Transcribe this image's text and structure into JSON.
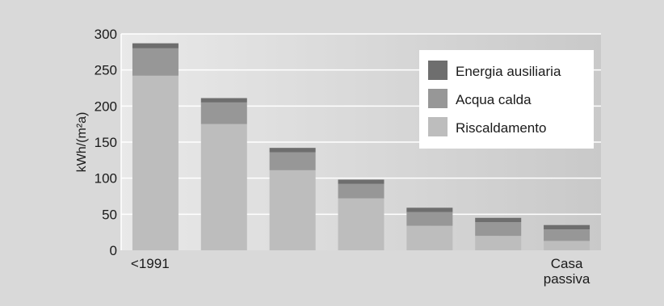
{
  "chart_data": {
    "type": "bar",
    "stacked": true,
    "title": "",
    "xlabel": "",
    "ylabel": "kWh/(m²a)",
    "ylim": [
      0,
      300
    ],
    "yticks": [
      0,
      50,
      100,
      150,
      200,
      250,
      300
    ],
    "grid": true,
    "legend_position": "top-right",
    "categories": [
      "<1991",
      "",
      "",
      "",
      "",
      "",
      "Casa passiva"
    ],
    "series": [
      {
        "name": "Riscaldamento",
        "color": "#bdbdbd",
        "values": [
          242,
          175,
          111,
          72,
          34,
          20,
          13
        ]
      },
      {
        "name": "Acqua calda",
        "color": "#979797",
        "values": [
          38,
          30,
          25,
          20,
          19,
          19,
          16
        ]
      },
      {
        "name": "Energia ausiliaria",
        "color": "#6e6e6e",
        "values": [
          7,
          6,
          6,
          6,
          6,
          6,
          6
        ]
      }
    ],
    "legend_order": [
      "Energia ausiliaria",
      "Acqua calda",
      "Riscaldamento"
    ]
  }
}
